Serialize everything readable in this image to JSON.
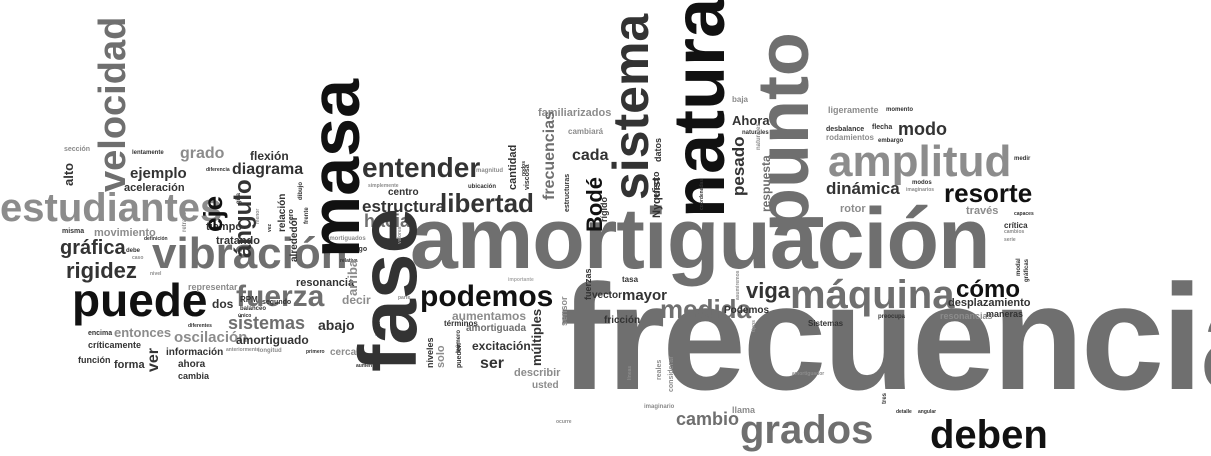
{
  "words": {
    "frecuencia": "frecuencia",
    "amortiguacion": "amortiguación",
    "fase": "fase",
    "masa": "masa",
    "natural": "natural",
    "punto": "punto",
    "sistema": "sistema",
    "amplitud": "amplitud",
    "vibracion": "vibración",
    "puede": "puede",
    "estudiantes": "estudiantes",
    "velocidad": "velocidad",
    "maquina": "máquina",
    "deben": "deben",
    "grados": "grados",
    "podemos": "podemos",
    "fuerza": "fuerza",
    "entender": "entender",
    "libertad": "libertad",
    "resorte": "resorte",
    "como": "cómo",
    "rigidez": "rigidez",
    "grafica": "gráfica",
    "eje": "eje",
    "medida": "medida",
    "viga": "viga",
    "modo": "modo",
    "dinamica": "dinámica",
    "sistemas": "sistemas",
    "ver": "ver",
    "cambio": "cambio",
    "estructura": "estructura",
    "hacia": "hacia",
    "angulo": "ángulo",
    "diagrama": "diagrama",
    "ejemplo": "ejemplo",
    "grado": "grado",
    "flexion": "flexión",
    "aceleracion": "aceleración",
    "alto": "alto",
    "movimiento": "movimiento",
    "tiempo": "tiempo",
    "tratando": "tratando",
    "oscilacion": "oscilación",
    "entonces": "entonces",
    "amortiguado": "amortiguado",
    "informacion": "información",
    "ahora_low": "ahora",
    "cambia": "cambia",
    "forma": "forma",
    "funcion": "función",
    "criticamente": "críticamente",
    "encima": "encima",
    "resonancia": "resonancia",
    "abajo": "abajo",
    "decir": "decir",
    "arriba": "arriba",
    "cerca": "cerca",
    "dos": "dos",
    "representar": "representar",
    "RPM": "RPM",
    "balanceo": "balanceo",
    "segundo": "segundo",
    "alrededor": "alrededor",
    "relacion": "relación",
    "cero": "cero",
    "excitacion": "excitación",
    "ser": "ser",
    "describir": "describir",
    "usted": "usted",
    "aumentamos": "aumentamos",
    "amortiguada": "amortiguada",
    "terminos": "términos",
    "multiples": "múltiples",
    "sensor": "sensor",
    "vector": "vector",
    "mayor": "mayor",
    "tasa": "tasa",
    "friccion": "fricción",
    "fuerzas": "fuerzas",
    "Podemos": "Podemos",
    "Sistemas": "Sistemas",
    "desplazamiento": "desplazamiento",
    "resonancias": "resonancias",
    "maneras": "maneras",
    "critica": "crítica",
    "traves": "través",
    "rotor": "rotor",
    "flecha": "flecha",
    "desbalance": "desbalance",
    "rodamientos": "rodamientos",
    "ligeramente": "ligeramente",
    "momento": "momento",
    "medir": "medir",
    "Ahora": "Ahora",
    "pesado": "pesado",
    "respuesta": "respuesta",
    "baja": "baja",
    "familiarizados": "familiarizados",
    "cambiara": "cambiará",
    "datos": "datos",
    "cada": "cada",
    "frecuencias": "frecuencias",
    "Bode": "Bodé",
    "cantidad": "cantidad",
    "centro": "centro",
    "ubicacion": "ubicación",
    "llama": "llama",
    "imaginario": "imaginario",
    "tres": "tres",
    "niveles": "niveles",
    "solo": "solo",
    "pueden": "pueden",
    "numero": "número",
    "considerar": "considerar",
    "Nyquist": "Nyquist",
    "efecto": "efecto",
    "rigido": "rígido",
    "estructuras": "estructuras",
    "viscosa": "viscosa",
    "capaces": "capaces",
    "modal": "modal",
    "graficas": "gráficas",
    "serie": "serie",
    "lentamente": "lentamente",
    "seccion": "sección",
    "misma": "misma",
    "tipos": "tipos",
    "naturales": "naturales",
    "imaginarios": "imaginarios",
    "modos": "modos",
    "embargo": "embargo",
    "largo": "largo",
    "real": "real",
    "reales": "reales",
    "debe": "debe",
    "caso": "caso",
    "nivel": "nivel",
    "diferentes": "diferentes",
    "parte": "parte",
    "importante": "importante",
    "aumenta": "aumenta",
    "primero": "primero",
    "magnitud": "magnitud",
    "nodos": "nodos",
    "coordenadas": "coordenadas",
    "angular": "angular",
    "detalle": "detalle",
    "amortiguador": "amortiguador",
    "diferencia": "diferencia",
    "gira": "gira",
    "vez": "vez",
    "unico": "único",
    "longitud": "longitud",
    "anteriormente": "anteriormente",
    "simplemente": "simplemente",
    "dibujo": "dibujo",
    "frente": "frente",
    "definicion": "definición",
    "menor": "menor",
    "retraso": "retraso",
    "amortiguados": "amortiguados",
    "valores": "valores",
    "lineas": "líneas",
    "cambios": "cambios",
    "preocupa": "preocupa",
    "asumiremos": "asumiremos",
    "relativa": "relativa",
    "ocurre": "ocurre"
  }
}
